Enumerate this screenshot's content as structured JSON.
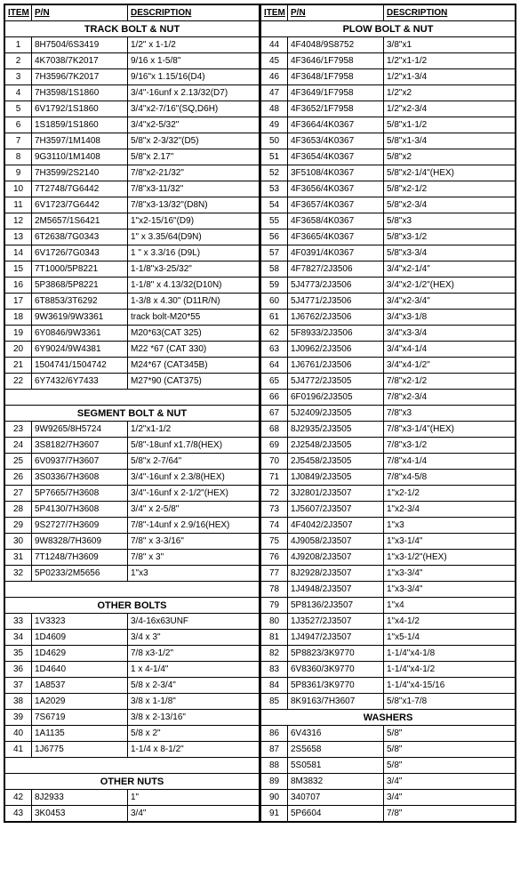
{
  "headers": {
    "item": "ITEM",
    "pn": "P/N",
    "desc": "DESCRIPTION"
  },
  "left": [
    {
      "section": "TRACK BOLT & NUT"
    },
    {
      "item": "1",
      "pn": "8H7504/6S3419",
      "desc": "1/2\" x 1-1/2"
    },
    {
      "item": "2",
      "pn": "4K7038/7K2017",
      "desc": "9/16 x 1-5/8\""
    },
    {
      "item": "3",
      "pn": "7H3596/7K2017",
      "desc": "9/16\"x 1.15/16(D4)"
    },
    {
      "item": "4",
      "pn": "7H3598/1S1860",
      "desc": "3/4\"-16unf x 2.13/32(D7)"
    },
    {
      "item": "5",
      "pn": "6V1792/1S1860",
      "desc": "3/4\"x2-7/16\"(SQ,D6H)"
    },
    {
      "item": "6",
      "pn": "1S1859/1S1860",
      "desc": "3/4\"x2-5/32\""
    },
    {
      "item": "7",
      "pn": "7H3597/1M1408",
      "desc": "5/8\"x 2-3/32\"(D5)"
    },
    {
      "item": "8",
      "pn": "9G3110/1M1408",
      "desc": "5/8\"x 2.17\""
    },
    {
      "item": "9",
      "pn": "7H3599/2S2140",
      "desc": "7/8\"x2-21/32\""
    },
    {
      "item": "10",
      "pn": "7T2748/7G6442",
      "desc": "7/8\"x3-11/32\""
    },
    {
      "item": "11",
      "pn": "6V1723/7G6442",
      "desc": "7/8\"x3-13/32\"(D8N)"
    },
    {
      "item": "12",
      "pn": "2M5657/1S6421",
      "desc": "1\"x2-15/16\"(D9)"
    },
    {
      "item": "13",
      "pn": "6T2638/7G0343",
      "desc": "1\" x 3.35/64(D9N)"
    },
    {
      "item": "14",
      "pn": "6V1726/7G0343",
      "desc": "1 \" x 3.3/16 (D9L)"
    },
    {
      "item": "15",
      "pn": "7T1000/5P8221",
      "desc": "1-1/8\"x3-25/32\""
    },
    {
      "item": "16",
      "pn": "5P3868/5P8221",
      "desc": "1-1/8\" x 4.13/32(D10N)"
    },
    {
      "item": "17",
      "pn": "6T8853/3T6292",
      "desc": "1-3/8 x 4.30\" (D11R/N)"
    },
    {
      "item": "18",
      "pn": "9W3619/9W3361",
      "desc": "track bolt-M20*55"
    },
    {
      "item": "19",
      "pn": "6Y0846/9W3361",
      "desc": "M20*63(CAT 325)"
    },
    {
      "item": "20",
      "pn": "6Y9024/9W4381",
      "desc": "M22 *67 (CAT 330)"
    },
    {
      "item": "21",
      "pn": "1504741/1504742",
      "desc": "M24*67 (CAT345B)"
    },
    {
      "item": "22",
      "pn": "6Y7432/6Y7433",
      "desc": "M27*90 (CAT375)"
    },
    {
      "blank": true
    },
    {
      "section": "SEGMENT BOLT & NUT"
    },
    {
      "item": "23",
      "pn": "9W9265/8H5724",
      "desc": "1/2\"x1-1/2"
    },
    {
      "item": "24",
      "pn": "3S8182/7H3607",
      "desc": "5/8\"-18unf x1.7/8(HEX)"
    },
    {
      "item": "25",
      "pn": "6V0937/7H3607",
      "desc": "5/8\"x 2-7/64\""
    },
    {
      "item": "26",
      "pn": "3S0336/7H3608",
      "desc": "3/4\"-16unf x 2.3/8(HEX)"
    },
    {
      "item": "27",
      "pn": "5P7665/7H3608",
      "desc": "3/4\"-16unf x 2-1/2\"(HEX)"
    },
    {
      "item": "28",
      "pn": "5P4130/7H3608",
      "desc": "3/4\" x 2-5/8\""
    },
    {
      "item": "29",
      "pn": "9S2727/7H3609",
      "desc": "7/8\"-14unf x 2.9/16(HEX)"
    },
    {
      "item": "30",
      "pn": "9W8328/7H3609",
      "desc": "7/8\" x 3-3/16\""
    },
    {
      "item": "31",
      "pn": "7T1248/7H3609",
      "desc": "7/8\" x 3\""
    },
    {
      "item": "32",
      "pn": "5P0233/2M5656",
      "desc": "1\"x3"
    },
    {
      "blank": true
    },
    {
      "section": "OTHER BOLTS"
    },
    {
      "item": "33",
      "pn": "1V3323",
      "desc": "3/4-16x63UNF"
    },
    {
      "item": "34",
      "pn": "1D4609",
      "desc": "3/4 x 3\""
    },
    {
      "item": "35",
      "pn": "1D4629",
      "desc": "7/8 x3-1/2\""
    },
    {
      "item": "36",
      "pn": "1D4640",
      "desc": "1 x 4-1/4\""
    },
    {
      "item": "37",
      "pn": "1A8537",
      "desc": "5/8 x 2-3/4\""
    },
    {
      "item": "38",
      "pn": "1A2029",
      "desc": "3/8 x 1-1/8\""
    },
    {
      "item": "39",
      "pn": "7S6719",
      "desc": "3/8 x 2-13/16\""
    },
    {
      "item": "40",
      "pn": "1A1135",
      "desc": "5/8 x 2\""
    },
    {
      "item": "41",
      "pn": "1J6775",
      "desc": "1-1/4 x 8-1/2\""
    },
    {
      "blank": true
    },
    {
      "section": "OTHER NUTS"
    },
    {
      "item": "42",
      "pn": "8J2933",
      "desc": "1\""
    },
    {
      "item": "43",
      "pn": "3K0453",
      "desc": "3/4\""
    }
  ],
  "right": [
    {
      "section": "PLOW BOLT & NUT"
    },
    {
      "item": "44",
      "pn": "4F4048/9S8752",
      "desc": "3/8\"x1"
    },
    {
      "item": "45",
      "pn": "4F3646/1F7958",
      "desc": "1/2\"x1-1/2"
    },
    {
      "item": "46",
      "pn": "4F3648/1F7958",
      "desc": "1/2\"x1-3/4"
    },
    {
      "item": "47",
      "pn": "4F3649/1F7958",
      "desc": "1/2\"x2"
    },
    {
      "item": "48",
      "pn": "4F3652/1F7958",
      "desc": "1/2\"x2-3/4"
    },
    {
      "item": "49",
      "pn": "4F3664/4K0367",
      "desc": "5/8\"x1-1/2"
    },
    {
      "item": "50",
      "pn": "4F3653/4K0367",
      "desc": "5/8\"x1-3/4"
    },
    {
      "item": "51",
      "pn": "4F3654/4K0367",
      "desc": "5/8\"x2"
    },
    {
      "item": "52",
      "pn": "3F5108/4K0367",
      "desc": "5/8\"x2-1/4\"(HEX)"
    },
    {
      "item": "53",
      "pn": "4F3656/4K0367",
      "desc": "5/8\"x2-1/2"
    },
    {
      "item": "54",
      "pn": "4F3657/4K0367",
      "desc": "5/8\"x2-3/4"
    },
    {
      "item": "55",
      "pn": "4F3658/4K0367",
      "desc": "5/8\"x3"
    },
    {
      "item": "56",
      "pn": "4F3665/4K0367",
      "desc": "5/8\"x3-1/2"
    },
    {
      "item": "57",
      "pn": "4F0391/4K0367",
      "desc": "5/8\"x3-3/4"
    },
    {
      "item": "58",
      "pn": "4F7827/2J3506",
      "desc": "3/4\"x2-1/4\""
    },
    {
      "item": "59",
      "pn": "5J4773/2J3506",
      "desc": "3/4\"x2-1/2\"(HEX)"
    },
    {
      "item": "60",
      "pn": "5J4771/2J3506",
      "desc": "3/4\"x2-3/4\""
    },
    {
      "item": "61",
      "pn": "1J6762/2J3506",
      "desc": "3/4\"x3-1/8"
    },
    {
      "item": "62",
      "pn": "5F8933/2J3506",
      "desc": "3/4\"x3-3/4"
    },
    {
      "item": "63",
      "pn": "1J0962/2J3506",
      "desc": "3/4\"x4-1/4"
    },
    {
      "item": "64",
      "pn": "1J6761/2J3506",
      "desc": "3/4\"x4-1/2\""
    },
    {
      "item": "65",
      "pn": "5J4772/2J3505",
      "desc": "7/8\"x2-1/2"
    },
    {
      "item": "66",
      "pn": "6F0196/2J3505",
      "desc": "7/8\"x2-3/4"
    },
    {
      "item": "67",
      "pn": "5J2409/2J3505",
      "desc": "7/8\"x3"
    },
    {
      "item": "68",
      "pn": "8J2935/2J3505",
      "desc": "7/8\"x3-1/4\"(HEX)"
    },
    {
      "item": "69",
      "pn": "2J2548/2J3505",
      "desc": "7/8\"x3-1/2"
    },
    {
      "item": "70",
      "pn": "2J5458/2J3505",
      "desc": "7/8\"x4-1/4"
    },
    {
      "item": "71",
      "pn": "1J0849/2J3505",
      "desc": "7/8\"x4-5/8"
    },
    {
      "item": "72",
      "pn": "3J2801/2J3507",
      "desc": "1\"x2-1/2"
    },
    {
      "item": "73",
      "pn": "1J5607/2J3507",
      "desc": "1\"x2-3/4"
    },
    {
      "item": "74",
      "pn": "4F4042/2J3507",
      "desc": "1\"x3"
    },
    {
      "item": "75",
      "pn": "4J9058/2J3507",
      "desc": "1\"x3-1/4\""
    },
    {
      "item": "76",
      "pn": "4J9208/2J3507",
      "desc": "1\"x3-1/2\"(HEX)"
    },
    {
      "item": "77",
      "pn": "8J2928/2J3507",
      "desc": "1\"x3-3/4\""
    },
    {
      "item": "78",
      "pn": "1J4948/2J3507",
      "desc": "1\"x3-3/4\""
    },
    {
      "item": "79",
      "pn": "5P8136/2J3507",
      "desc": "1\"x4"
    },
    {
      "item": "80",
      "pn": "1J3527/2J3507",
      "desc": "1\"x4-1/2"
    },
    {
      "item": "81",
      "pn": "1J4947/2J3507",
      "desc": "1\"x5-1/4"
    },
    {
      "item": "82",
      "pn": "5P8823/3K9770",
      "desc": "1-1/4\"x4-1/8"
    },
    {
      "item": "83",
      "pn": "6V8360/3K9770",
      "desc": "1-1/4\"x4-1/2"
    },
    {
      "item": "84",
      "pn": "5P8361/3K9770",
      "desc": "1-1/4\"x4-15/16"
    },
    {
      "item": "85",
      "pn": "8K9163/7H3607",
      "desc": "5/8\"x1-7/8"
    },
    {
      "section": "WASHERS"
    },
    {
      "item": "86",
      "pn": "6V4316",
      "desc": "5/8\""
    },
    {
      "item": "87",
      "pn": "2S5658",
      "desc": "5/8\""
    },
    {
      "item": "88",
      "pn": "5S0581",
      "desc": "5/8\""
    },
    {
      "item": "89",
      "pn": "8M3832",
      "desc": "3/4\""
    },
    {
      "item": "90",
      "pn": "340707",
      "desc": "3/4\""
    },
    {
      "item": "91",
      "pn": "5P6604",
      "desc": "7/8\""
    }
  ]
}
